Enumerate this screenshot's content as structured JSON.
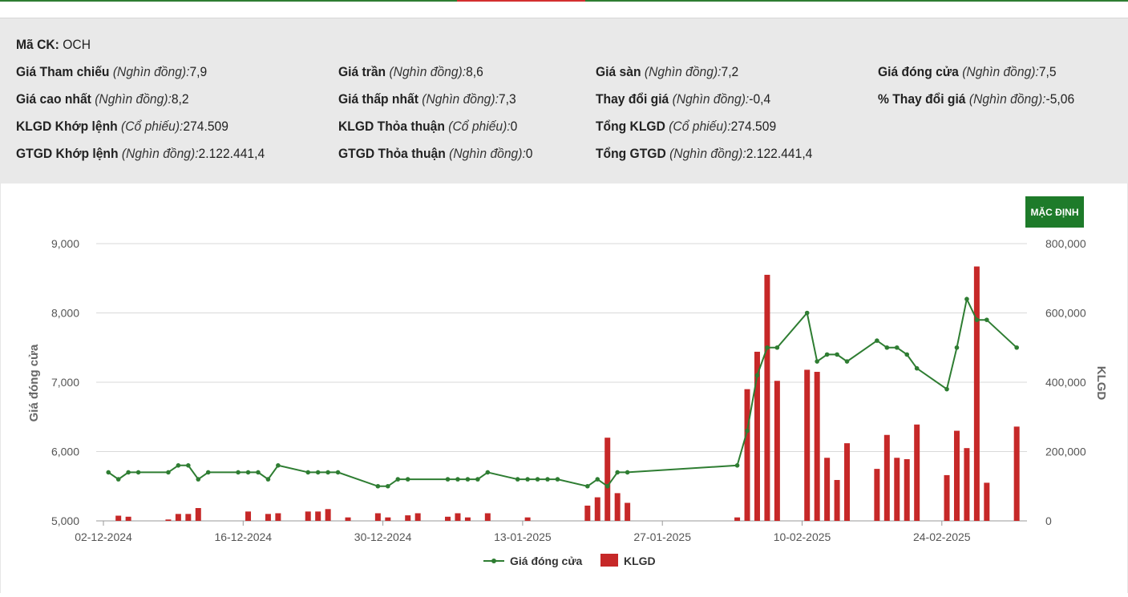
{
  "info": {
    "symbol": {
      "label": "Mã CK:",
      "value": "OCH"
    },
    "rows": [
      [
        {
          "label": "Giá Tham chiếu",
          "unit": "(Nghìn đồng):",
          "value": "7,9"
        },
        {
          "label": "Giá trần",
          "unit": "(Nghìn đồng):",
          "value": "8,6"
        },
        {
          "label": "Giá sàn",
          "unit": "(Nghìn đồng):",
          "value": "7,2"
        },
        {
          "label": "Giá đóng cửa",
          "unit": "(Nghìn đồng):",
          "value": "7,5"
        }
      ],
      [
        {
          "label": "Giá cao nhất",
          "unit": "(Nghìn đồng):",
          "value": "8,2"
        },
        {
          "label": "Giá thấp nhất",
          "unit": "(Nghìn đồng):",
          "value": "7,3"
        },
        {
          "label": "Thay đổi giá",
          "unit": "(Nghìn đồng):",
          "value": "-0,4"
        },
        {
          "label": "% Thay đổi giá",
          "unit": "(Nghìn đồng):",
          "value": "-5,06"
        }
      ],
      [
        {
          "label": "KLGD Khớp lệnh",
          "unit": "(Cổ phiếu):",
          "value": "274.509"
        },
        {
          "label": "KLGD Thỏa thuận",
          "unit": "(Cổ phiếu):",
          "value": "0"
        },
        {
          "label": "Tổng KLGD",
          "unit": "(Cổ phiếu):",
          "value": "274.509"
        }
      ],
      [
        {
          "label": "GTGD Khớp lệnh",
          "unit": "(Nghìn đồng):",
          "value": "2.122.441,4"
        },
        {
          "label": "GTGD Thỏa thuận",
          "unit": "(Nghìn đồng):",
          "value": "0"
        },
        {
          "label": "Tổng GTGD",
          "unit": "(Nghìn đồng):",
          "value": "2.122.441,4"
        }
      ]
    ]
  },
  "button": {
    "label": "MẶC ĐỊNH"
  },
  "colors": {
    "line": "#2e7d32",
    "bar": "#c62828",
    "button": "#1e7b2a"
  },
  "chart_data": {
    "type": "bar+line",
    "x_ticks": [
      "02-12-2024",
      "16-12-2024",
      "30-12-2024",
      "13-01-2025",
      "27-01-2025",
      "10-02-2025",
      "24-02-2025"
    ],
    "x_tick_days": [
      0,
      14,
      28,
      42,
      56,
      70,
      84
    ],
    "y_left": {
      "label": "Giá đóng cửa",
      "min": 5000,
      "max": 9000,
      "ticks": [
        5000,
        6000,
        7000,
        8000,
        9000
      ],
      "tick_labels": [
        "5,000",
        "6,000",
        "7,000",
        "8,000",
        "9,000"
      ]
    },
    "y_right": {
      "label": "KLGD",
      "min": 0,
      "max": 800000,
      "ticks": [
        0,
        200000,
        400000,
        600000,
        800000
      ],
      "tick_labels": [
        "0",
        "200,000",
        "400,000",
        "600,000",
        "800,000"
      ]
    },
    "legend": [
      {
        "name": "Giá đóng cửa",
        "type": "line"
      },
      {
        "name": "KLGD",
        "type": "bar"
      }
    ],
    "series": [
      {
        "name": "Giá đóng cửa",
        "type": "line",
        "points": [
          [
            0.5,
            5700
          ],
          [
            1.5,
            5600
          ],
          [
            2.5,
            5700
          ],
          [
            3.5,
            5700
          ],
          [
            6.5,
            5700
          ],
          [
            7.5,
            5800
          ],
          [
            8.5,
            5800
          ],
          [
            9.5,
            5600
          ],
          [
            10.5,
            5700
          ],
          [
            13.5,
            5700
          ],
          [
            14.5,
            5700
          ],
          [
            15.5,
            5700
          ],
          [
            16.5,
            5600
          ],
          [
            17.5,
            5800
          ],
          [
            20.5,
            5700
          ],
          [
            21.5,
            5700
          ],
          [
            22.5,
            5700
          ],
          [
            23.5,
            5700
          ],
          [
            27.5,
            5500
          ],
          [
            28.5,
            5500
          ],
          [
            29.5,
            5600
          ],
          [
            30.5,
            5600
          ],
          [
            34.5,
            5600
          ],
          [
            35.5,
            5600
          ],
          [
            36.5,
            5600
          ],
          [
            37.5,
            5600
          ],
          [
            38.5,
            5700
          ],
          [
            41.5,
            5600
          ],
          [
            42.5,
            5600
          ],
          [
            43.5,
            5600
          ],
          [
            44.5,
            5600
          ],
          [
            45.5,
            5600
          ],
          [
            48.5,
            5500
          ],
          [
            49.5,
            5600
          ],
          [
            50.5,
            5500
          ],
          [
            51.5,
            5700
          ],
          [
            52.5,
            5700
          ],
          [
            63.5,
            5800
          ],
          [
            64.5,
            6300
          ],
          [
            65.5,
            7100
          ],
          [
            66.5,
            7500
          ],
          [
            67.5,
            7500
          ],
          [
            70.5,
            8000
          ],
          [
            71.5,
            7300
          ],
          [
            72.5,
            7400
          ],
          [
            73.5,
            7400
          ],
          [
            74.5,
            7300
          ],
          [
            77.5,
            7600
          ],
          [
            78.5,
            7500
          ],
          [
            79.5,
            7500
          ],
          [
            80.5,
            7400
          ],
          [
            81.5,
            7200
          ],
          [
            84.5,
            6900
          ],
          [
            85.5,
            7500
          ],
          [
            86.5,
            8200
          ],
          [
            87.5,
            7900
          ],
          [
            88.5,
            7900
          ],
          [
            91.5,
            7500
          ]
        ]
      },
      {
        "name": "KLGD",
        "type": "bar",
        "points": [
          [
            1.5,
            15000
          ],
          [
            2.5,
            12000
          ],
          [
            6.5,
            4000
          ],
          [
            7.5,
            20000
          ],
          [
            8.5,
            20000
          ],
          [
            9.5,
            37000
          ],
          [
            14.5,
            27000
          ],
          [
            16.5,
            20000
          ],
          [
            17.5,
            22000
          ],
          [
            20.5,
            27000
          ],
          [
            21.5,
            27000
          ],
          [
            22.5,
            34000
          ],
          [
            24.5,
            10000
          ],
          [
            27.5,
            22000
          ],
          [
            28.5,
            10000
          ],
          [
            30.5,
            16000
          ],
          [
            31.5,
            22000
          ],
          [
            34.5,
            12000
          ],
          [
            35.5,
            22000
          ],
          [
            36.5,
            10000
          ],
          [
            38.5,
            22000
          ],
          [
            42.5,
            10000
          ],
          [
            48.5,
            44000
          ],
          [
            49.5,
            68000
          ],
          [
            50.5,
            240000
          ],
          [
            51.5,
            80000
          ],
          [
            52.5,
            52000
          ],
          [
            63.5,
            10000
          ],
          [
            64.5,
            380000
          ],
          [
            65.5,
            488000
          ],
          [
            66.5,
            710000
          ],
          [
            67.5,
            404000
          ],
          [
            70.5,
            436000
          ],
          [
            71.5,
            430000
          ],
          [
            72.5,
            182000
          ],
          [
            73.5,
            118000
          ],
          [
            74.5,
            224000
          ],
          [
            77.5,
            150000
          ],
          [
            78.5,
            248000
          ],
          [
            79.5,
            182000
          ],
          [
            80.5,
            178000
          ],
          [
            81.5,
            278000
          ],
          [
            84.5,
            132000
          ],
          [
            85.5,
            260000
          ],
          [
            86.5,
            210000
          ],
          [
            87.5,
            734000
          ],
          [
            88.5,
            110000
          ],
          [
            91.5,
            272000
          ]
        ]
      }
    ]
  }
}
